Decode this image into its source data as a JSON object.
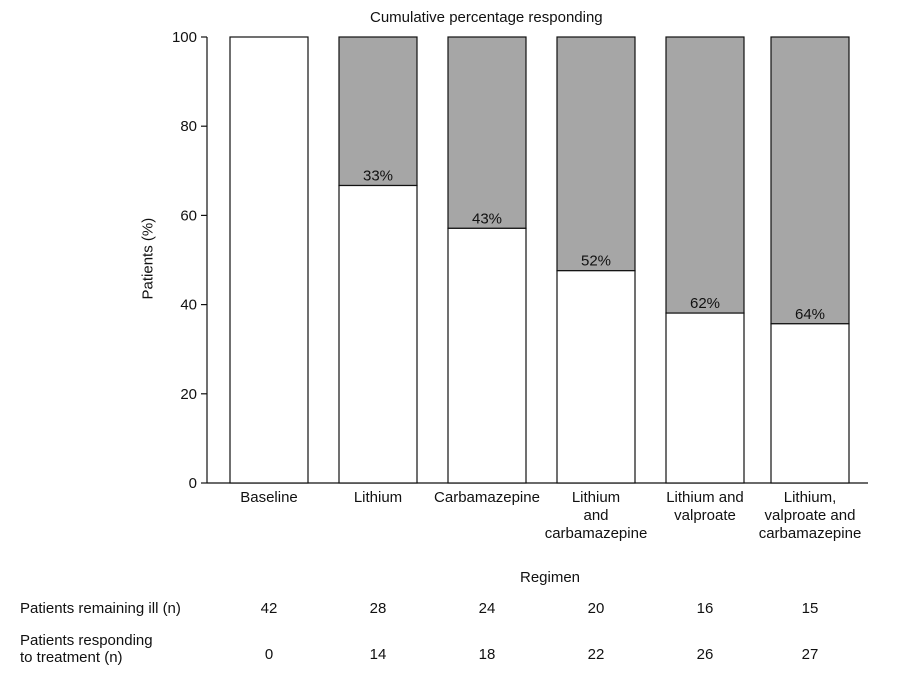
{
  "chart_data": {
    "type": "bar",
    "stacked": true,
    "title": "Cumulative percentage responding",
    "xlabel": "Regimen",
    "ylabel": "Patients (%)",
    "ylim": [
      0,
      100
    ],
    "yticks": [
      "0",
      "20",
      "40",
      "60",
      "80",
      "100"
    ],
    "grid": false,
    "categories": [
      "Baseline",
      "Lithium",
      "Carbamazepine",
      "Lithium and carbamazepine",
      "Lithium and valproate",
      "Lithium, valproate and carbamazepine"
    ],
    "category_lines": [
      [
        "Baseline"
      ],
      [
        "Lithium"
      ],
      [
        "Carbamazepine"
      ],
      [
        "Lithium",
        "and",
        "carbamazepine"
      ],
      [
        "Lithium and",
        "valproate"
      ],
      [
        "Lithium,",
        "valproate and",
        "carbamazepine"
      ]
    ],
    "series": [
      {
        "name": "",
        "values": [
          100,
          66.7,
          57.1,
          47.6,
          38.1,
          35.7
        ],
        "color": "#ffffff"
      },
      {
        "name": "",
        "values": [
          0,
          33.3,
          42.9,
          52.4,
          61.9,
          64.3
        ],
        "color": "#a6a6a6"
      }
    ],
    "data_labels": [
      "",
      "33%",
      "43%",
      "52%",
      "62%",
      "64%"
    ]
  },
  "table": {
    "rows": [
      {
        "label": "Patients remaining ill (n)",
        "values": [
          "42",
          "28",
          "24",
          "20",
          "16",
          "15"
        ]
      },
      {
        "label": "Patients responding to treatment (n)",
        "label_lines": [
          "Patients responding",
          "to treatment (n)"
        ],
        "values": [
          "0",
          "14",
          "18",
          "22",
          "26",
          "27"
        ]
      }
    ]
  }
}
